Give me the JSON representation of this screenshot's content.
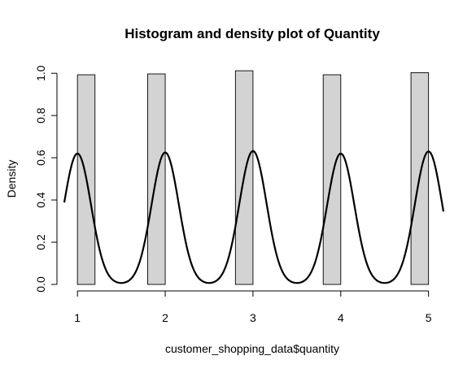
{
  "chart_data": {
    "type": "bar",
    "title": "Histogram and density plot of Quantity",
    "xlabel": "customer_shopping_data$quantity",
    "ylabel": "Density",
    "xlim": [
      0.85,
      5.17
    ],
    "ylim": [
      0,
      1.02
    ],
    "x_ticks": [
      "1",
      "2",
      "3",
      "4",
      "5"
    ],
    "y_ticks": [
      "0.0",
      "0.2",
      "0.4",
      "0.6",
      "0.8",
      "1.0"
    ],
    "grid": false,
    "bars": [
      {
        "x_start": 1.0,
        "x_end": 1.2,
        "density": 0.993
      },
      {
        "x_start": 1.8,
        "x_end": 2.0,
        "density": 0.997
      },
      {
        "x_start": 2.8,
        "x_end": 3.0,
        "density": 1.012
      },
      {
        "x_start": 3.8,
        "x_end": 4.0,
        "density": 0.993
      },
      {
        "x_start": 4.8,
        "x_end": 5.0,
        "density": 1.003
      }
    ],
    "bar_color": "#d3d3d3",
    "density_curve": {
      "line_color": "#000000",
      "peak_positions": [
        1,
        2,
        3,
        4,
        5
      ],
      "peak_densities": [
        0.62,
        0.625,
        0.632,
        0.62,
        0.63
      ],
      "bandwidth": 0.155
    }
  }
}
